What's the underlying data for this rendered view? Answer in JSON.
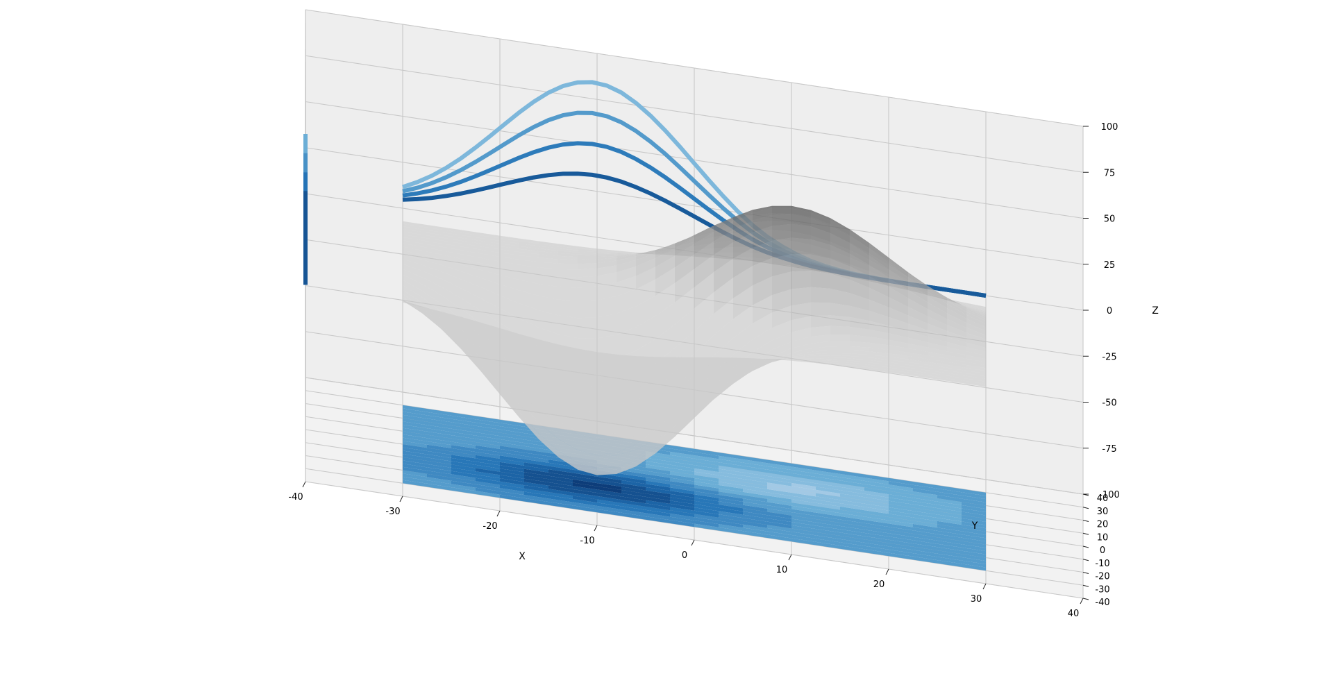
{
  "chart_data": {
    "type": "surface3d",
    "title": "",
    "xlabel": "X",
    "ylabel": "Y",
    "zlabel": "Z",
    "xlim": [
      -40,
      40
    ],
    "ylim": [
      -40,
      40
    ],
    "zlim": [
      -100,
      100
    ],
    "xticks": [
      -40,
      -30,
      -20,
      -10,
      0,
      10,
      20,
      30,
      40
    ],
    "yticks": [
      -40,
      -30,
      -20,
      -10,
      0,
      10,
      20,
      30,
      40
    ],
    "zticks": [
      -100,
      -75,
      -50,
      -25,
      0,
      25,
      50,
      75,
      100
    ],
    "grid": true,
    "colormap": "Blues",
    "surface_color": "#9a9a9a",
    "contour_offsets": {
      "z": -100,
      "x": -40,
      "y": 40
    },
    "surface": {
      "x_range": [
        -30,
        30
      ],
      "y_range": [
        -30,
        30
      ],
      "peak": {
        "x": 10,
        "y": 10,
        "z": 55
      },
      "trough": {
        "x": -10,
        "y": -10,
        "z": -95
      }
    },
    "contour_levels": [
      -90,
      -70,
      -50,
      -30,
      -10,
      10,
      30,
      50
    ]
  }
}
